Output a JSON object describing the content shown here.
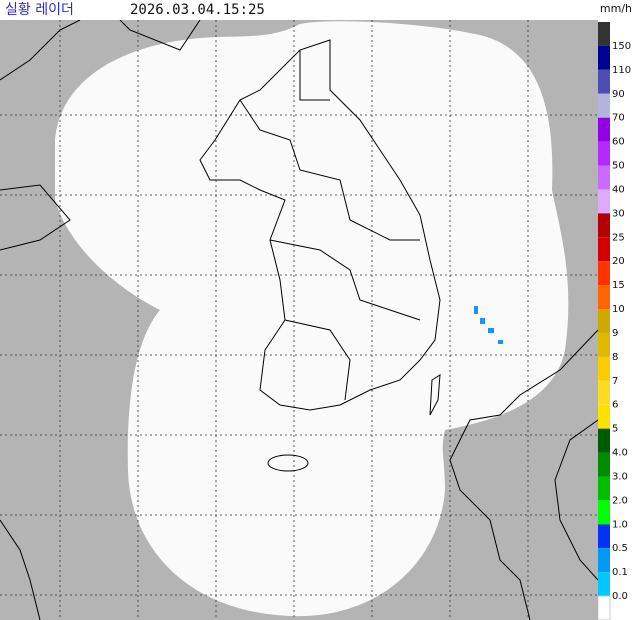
{
  "header": {
    "title": "실황 레이더",
    "time": "2026.03.04.15:25"
  },
  "legend": {
    "unit": "mm/h",
    "top_color": "#333333",
    "items": [
      {
        "label": "150",
        "color": "#000390"
      },
      {
        "label": "110",
        "color": "#4c4eb1"
      },
      {
        "label": "90",
        "color": "#b3b4de"
      },
      {
        "label": "70",
        "color": "#9300e4"
      },
      {
        "label": "60",
        "color": "#b329ff"
      },
      {
        "label": "50",
        "color": "#c96bff"
      },
      {
        "label": "40",
        "color": "#dfa9ff"
      },
      {
        "label": "30",
        "color": "#b40000"
      },
      {
        "label": "25",
        "color": "#d20000"
      },
      {
        "label": "20",
        "color": "#ff3300"
      },
      {
        "label": "15",
        "color": "#ff6600"
      },
      {
        "label": "10",
        "color": "#ccaa00"
      },
      {
        "label": "9",
        "color": "#e0b900"
      },
      {
        "label": "8",
        "color": "#f9cd00"
      },
      {
        "label": "7",
        "color": "#ffdc1f"
      },
      {
        "label": "6",
        "color": "#ffe100"
      },
      {
        "label": "5",
        "color": "#005a00"
      },
      {
        "label": "4.0",
        "color": "#008c00"
      },
      {
        "label": "3.0",
        "color": "#00be00"
      },
      {
        "label": "2.0",
        "color": "#00ff00"
      },
      {
        "label": "1.0",
        "color": "#0033f5"
      },
      {
        "label": "0.5",
        "color": "#009bf5"
      },
      {
        "label": "0.1",
        "color": "#00c8ff"
      },
      {
        "label": "0.0",
        "color": "#ffffff"
      }
    ]
  }
}
